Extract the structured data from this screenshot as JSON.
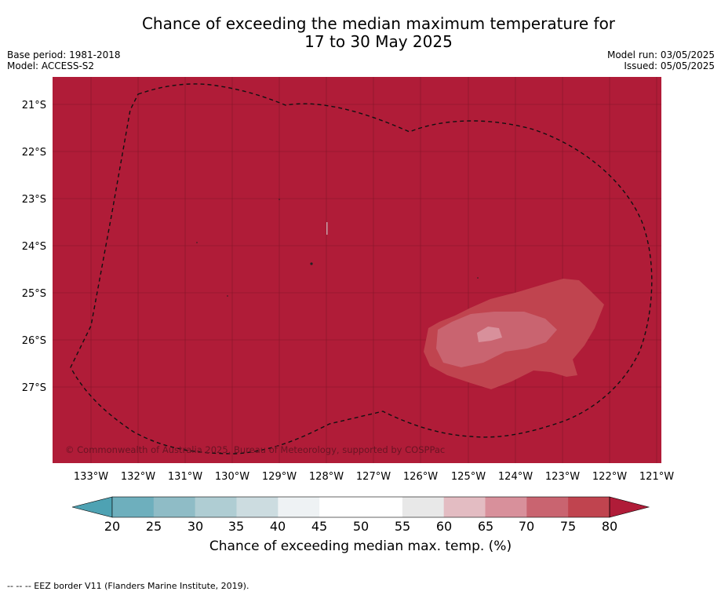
{
  "title_line1": "Chance of exceeding the median maximum temperature for",
  "title_line2": "17 to 30 May 2025",
  "meta": {
    "base_period": "Base period: 1981-2018",
    "model": "Model: ACCESS-S2",
    "model_run": "Model run: 03/05/2025",
    "issued": "Issued: 05/05/2025"
  },
  "map": {
    "lat_labels": [
      "21°S",
      "22°S",
      "23°S",
      "24°S",
      "25°S",
      "26°S",
      "27°S"
    ],
    "lon_labels": [
      "133°W",
      "132°W",
      "131°W",
      "130°W",
      "129°W",
      "128°W",
      "127°W",
      "126°W",
      "125°W",
      "124°W",
      "123°W",
      "122°W",
      "121°W"
    ],
    "copyright": "© Commonwealth of Australia 2025, Bureau of Meteorology, supported by COSPPac",
    "background_color": "#b01c38",
    "grid_color": "#7a1325"
  },
  "colorbar": {
    "ticks": [
      "20",
      "25",
      "30",
      "35",
      "40",
      "45",
      "50",
      "55",
      "60",
      "65",
      "70",
      "75",
      "80"
    ],
    "colors": [
      "#4ea2b3",
      "#6eafbd",
      "#8fbcc6",
      "#afcdd3",
      "#ccdce0",
      "#eef2f4",
      "#ffffff",
      "#ffffff",
      "#e8e8e8",
      "#e3bcc2",
      "#d8909b",
      "#c96470",
      "#c0444f",
      "#b01c38"
    ],
    "label": "Chance of exceeding median max. temp. (%)"
  },
  "footnote": "--  --  -- EEZ border V11 (Flanders Marine Institute, 2019)."
}
